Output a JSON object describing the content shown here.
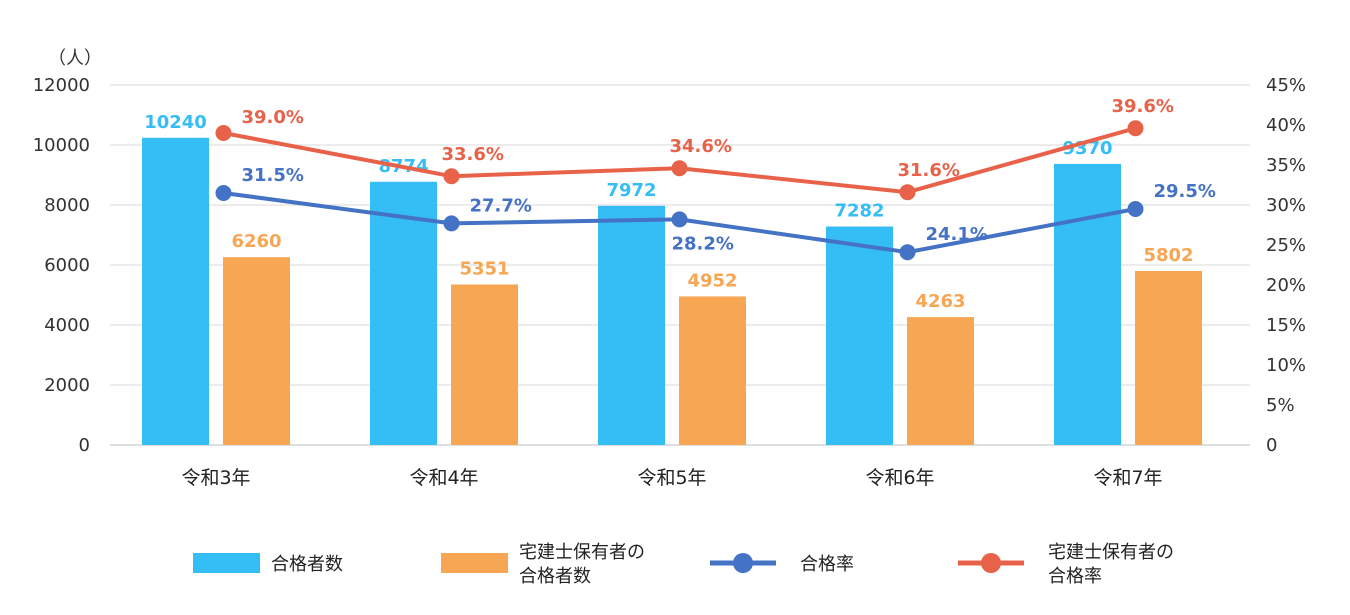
{
  "chart_data": {
    "type": "bar",
    "y_unit_label": "（人）",
    "categories": [
      "令和3年",
      "令和4年",
      "令和5年",
      "令和6年",
      "令和7年"
    ],
    "ylim": [
      0,
      12000
    ],
    "yticks": [
      "12000",
      "10000",
      "8000",
      "6000",
      "4000",
      "2000",
      "0"
    ],
    "y2lim": [
      0,
      45
    ],
    "y2ticks": [
      "45%",
      "40%",
      "35%",
      "30%",
      "25%",
      "20%",
      "15%",
      "10%",
      "5%",
      "0"
    ],
    "grid": true,
    "legend_position": "bottom",
    "bar_series": [
      {
        "name": "合格者数",
        "color": "#35BDF5",
        "values": [
          10240,
          8774,
          7972,
          7282,
          9370
        ],
        "labels": [
          "10240",
          "8774",
          "7972",
          "7282",
          "9370"
        ]
      },
      {
        "name_lines": [
          "宅建士保有者の",
          "合格者数"
        ],
        "color": "#F7A654",
        "values": [
          6260,
          5351,
          4952,
          4263,
          5802
        ],
        "labels": [
          "6260",
          "5351",
          "4952",
          "4263",
          "5802"
        ]
      }
    ],
    "line_series": [
      {
        "name": "合格率",
        "color": "#4472C4",
        "values": [
          31.5,
          27.7,
          28.2,
          24.1,
          29.5
        ],
        "labels": [
          "31.5%",
          "27.7%",
          "28.2%",
          "24.1%",
          "29.5%"
        ]
      },
      {
        "name_lines": [
          "宅建士保有者の",
          "合格率"
        ],
        "color": "#E8624A",
        "values": [
          39.0,
          33.6,
          34.6,
          31.6,
          39.6
        ],
        "labels": [
          "39.0%",
          "33.6%",
          "34.6%",
          "31.6%",
          "39.6%"
        ]
      }
    ]
  }
}
